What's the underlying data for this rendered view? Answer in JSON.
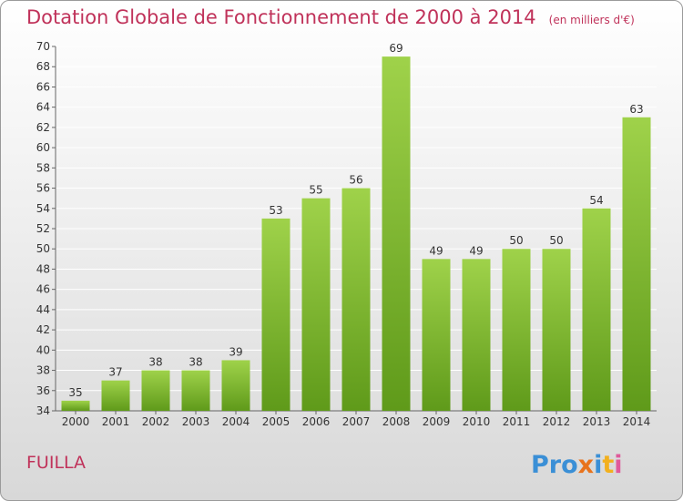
{
  "chart_data": {
    "type": "bar",
    "title": "Dotation Globale de Fonctionnement de 2000 à 2014",
    "unit": "(en milliers d'€)",
    "categories": [
      "2000",
      "2001",
      "2002",
      "2003",
      "2004",
      "2005",
      "2006",
      "2007",
      "2008",
      "2009",
      "2010",
      "2011",
      "2012",
      "2013",
      "2014"
    ],
    "values": [
      35,
      37,
      38,
      38,
      39,
      53,
      55,
      56,
      69,
      49,
      49,
      50,
      50,
      54,
      63
    ],
    "ylim": [
      34,
      70
    ],
    "yticks": [
      34,
      36,
      38,
      40,
      42,
      44,
      46,
      48,
      50,
      52,
      54,
      56,
      58,
      60,
      62,
      64,
      66,
      68,
      70
    ],
    "grid": true,
    "bar_color": "#7ab828",
    "data_labels": true
  },
  "commune": "FUILLA",
  "logo": {
    "text": "Proxiti",
    "colors": [
      "#3a8fd6",
      "#e8731c",
      "#f2b01e",
      "#e05a9b"
    ]
  }
}
